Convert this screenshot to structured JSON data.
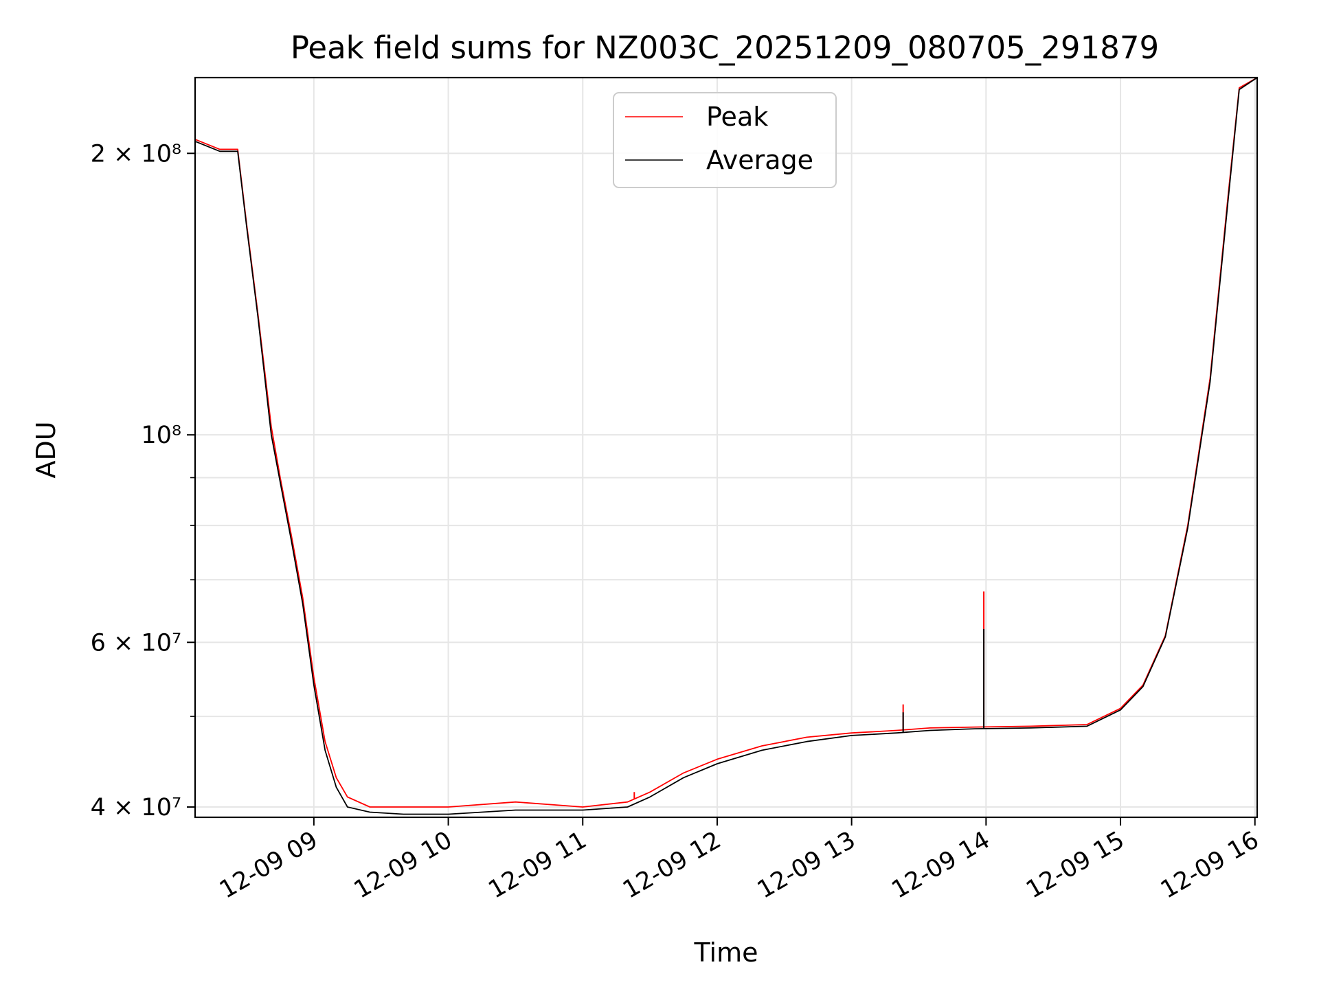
{
  "chart_data": {
    "type": "line",
    "title": "Peak field sums for NZ003C_20251209_080705_291879",
    "xlabel": "Time",
    "ylabel": "ADU",
    "y_scale": "log",
    "ylim": [
      39000000,
      241000000
    ],
    "xlim": [
      "2025-12-09 08:07",
      "2025-12-09 16:01"
    ],
    "grid": true,
    "legend_position": "top-center",
    "x_ticks": [
      {
        "t": "2025-12-09 09:00",
        "label": "12-09 09"
      },
      {
        "t": "2025-12-09 10:00",
        "label": "12-09 10"
      },
      {
        "t": "2025-12-09 11:00",
        "label": "12-09 11"
      },
      {
        "t": "2025-12-09 12:00",
        "label": "12-09 12"
      },
      {
        "t": "2025-12-09 13:00",
        "label": "12-09 13"
      },
      {
        "t": "2025-12-09 14:00",
        "label": "12-09 14"
      },
      {
        "t": "2025-12-09 15:00",
        "label": "12-09 15"
      },
      {
        "t": "2025-12-09 16:00",
        "label": "12-09 16"
      }
    ],
    "y_ticks": [
      {
        "value": 40000000,
        "label": "4 × 10⁷"
      },
      {
        "value": 60000000,
        "label": "6 × 10⁷"
      },
      {
        "value": 100000000,
        "label": "10⁸"
      },
      {
        "value": 200000000,
        "label": "2 × 10⁸"
      }
    ],
    "y_minor_ticks": [
      50000000,
      70000000,
      80000000,
      90000000
    ],
    "series": [
      {
        "name": "Peak",
        "color": "#ff0000",
        "x": [
          "2025-12-09 08:07",
          "2025-12-09 08:18",
          "2025-12-09 08:26",
          "2025-12-09 08:30",
          "2025-12-09 08:35",
          "2025-12-09 08:41",
          "2025-12-09 08:45",
          "2025-12-09 08:50",
          "2025-12-09 08:55",
          "2025-12-09 09:00",
          "2025-12-09 09:05",
          "2025-12-09 09:10",
          "2025-12-09 09:15",
          "2025-12-09 09:25",
          "2025-12-09 09:40",
          "2025-12-09 10:00",
          "2025-12-09 10:30",
          "2025-12-09 11:00",
          "2025-12-09 11:20",
          "2025-12-09 11:30",
          "2025-12-09 11:45",
          "2025-12-09 12:00",
          "2025-12-09 12:20",
          "2025-12-09 12:40",
          "2025-12-09 13:00",
          "2025-12-09 13:20",
          "2025-12-09 13:35",
          "2025-12-09 13:55",
          "2025-12-09 14:20",
          "2025-12-09 14:45",
          "2025-12-09 15:00",
          "2025-12-09 15:10",
          "2025-12-09 15:20",
          "2025-12-09 15:30",
          "2025-12-09 15:40",
          "2025-12-09 15:48",
          "2025-12-09 15:53",
          "2025-12-09 16:01"
        ],
        "values": [
          207000000,
          202000000,
          202000000,
          168000000,
          135000000,
          102000000,
          90000000,
          78000000,
          67000000,
          55000000,
          47000000,
          43000000,
          41000000,
          40000000,
          40000000,
          40000000,
          40500000,
          40000000,
          40500000,
          41500000,
          43500000,
          45000000,
          46500000,
          47500000,
          48000000,
          48300000,
          48600000,
          48700000,
          48800000,
          49000000,
          51000000,
          54000000,
          61000000,
          80000000,
          115000000,
          180000000,
          235000000,
          241000000
        ],
        "spikes": [
          {
            "x": "2025-12-09 13:23",
            "value": 51500000
          },
          {
            "x": "2025-12-09 13:59",
            "value": 68000000
          },
          {
            "x": "2025-12-09 11:23",
            "value": 41500000
          }
        ]
      },
      {
        "name": "Average",
        "color": "#000000",
        "x": [
          "2025-12-09 08:07",
          "2025-12-09 08:18",
          "2025-12-09 08:26",
          "2025-12-09 08:30",
          "2025-12-09 08:35",
          "2025-12-09 08:41",
          "2025-12-09 08:45",
          "2025-12-09 08:50",
          "2025-12-09 08:55",
          "2025-12-09 09:00",
          "2025-12-09 09:05",
          "2025-12-09 09:10",
          "2025-12-09 09:15",
          "2025-12-09 09:25",
          "2025-12-09 09:40",
          "2025-12-09 10:00",
          "2025-12-09 10:30",
          "2025-12-09 11:00",
          "2025-12-09 11:20",
          "2025-12-09 11:30",
          "2025-12-09 11:45",
          "2025-12-09 12:00",
          "2025-12-09 12:20",
          "2025-12-09 12:40",
          "2025-12-09 13:00",
          "2025-12-09 13:20",
          "2025-12-09 13:35",
          "2025-12-09 13:55",
          "2025-12-09 14:20",
          "2025-12-09 14:45",
          "2025-12-09 15:00",
          "2025-12-09 15:10",
          "2025-12-09 15:20",
          "2025-12-09 15:30",
          "2025-12-09 15:40",
          "2025-12-09 15:48",
          "2025-12-09 15:53",
          "2025-12-09 16:01"
        ],
        "values": [
          206000000,
          201000000,
          201000000,
          167000000,
          134000000,
          100000000,
          89000000,
          77000000,
          66000000,
          54000000,
          46000000,
          42000000,
          40000000,
          39500000,
          39300000,
          39300000,
          39700000,
          39700000,
          40000000,
          41000000,
          43000000,
          44500000,
          46000000,
          47000000,
          47700000,
          48000000,
          48300000,
          48500000,
          48600000,
          48800000,
          50800000,
          53800000,
          60800000,
          79500000,
          114000000,
          178000000,
          234000000,
          241000000
        ],
        "spikes": [
          {
            "x": "2025-12-09 13:23",
            "value": 50500000
          },
          {
            "x": "2025-12-09 13:59",
            "value": 62000000
          }
        ]
      }
    ]
  }
}
